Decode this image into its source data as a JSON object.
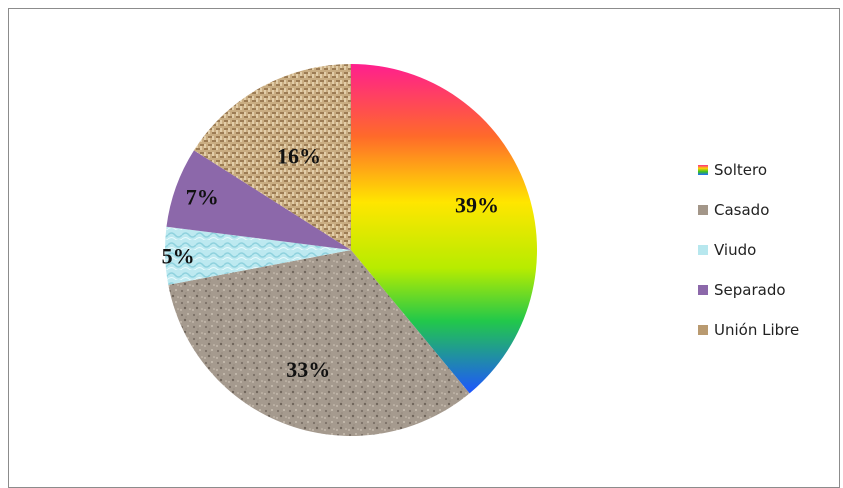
{
  "chart_data": {
    "type": "pie",
    "title": "",
    "legend_position": "right",
    "slices": [
      {
        "label": "Soltero",
        "value": 39,
        "display": "39%",
        "fill": "url(#grad-rainbow)",
        "swatch": "linear-gradient(#ff2a8a,#ffd200,#3ac21e,#1e6bff)"
      },
      {
        "label": "Casado",
        "value": 33,
        "display": "33%",
        "fill": "url(#pat-granite)",
        "swatch": "#a39689"
      },
      {
        "label": "Viudo",
        "value": 5,
        "display": "5%",
        "fill": "url(#pat-water)",
        "swatch": "#b7e7ee"
      },
      {
        "label": "Separado",
        "value": 7,
        "display": "7%",
        "fill": "#8c68aa",
        "swatch": "#8c68aa"
      },
      {
        "label": "Unión Libre",
        "value": 16,
        "display": "16%",
        "fill": "url(#pat-burlap)",
        "swatch": "#b99a70"
      }
    ]
  }
}
